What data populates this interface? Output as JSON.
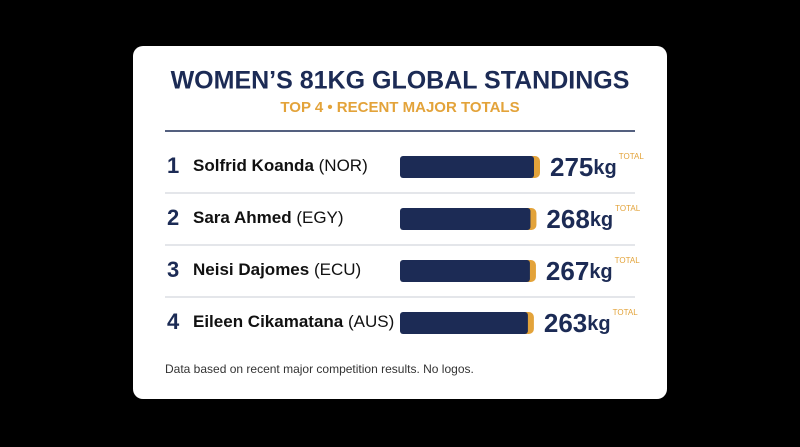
{
  "chart_data": {
    "type": "bar",
    "title": "WOMEN’S 81KG GLOBAL STANDINGS",
    "subtitle": "TOP 4 • RECENT MAJOR TOTALS",
    "ranks": [
      1,
      2,
      3,
      4
    ],
    "categories": [
      "Solfrid Koanda",
      "Sara Ahmed",
      "Neisi Dajomes",
      "Eileen Cikamatana"
    ],
    "countries": [
      "(NOR)",
      "(EGY)",
      "(ECU)",
      "(AUS)"
    ],
    "values": [
      275,
      268,
      267,
      263
    ],
    "unit": "kg",
    "value_tag": "TOTAL",
    "color": "#1c2b55",
    "cap_color": "#e3a33a",
    "footnote": "Data based on recent major competition results. No logos."
  }
}
